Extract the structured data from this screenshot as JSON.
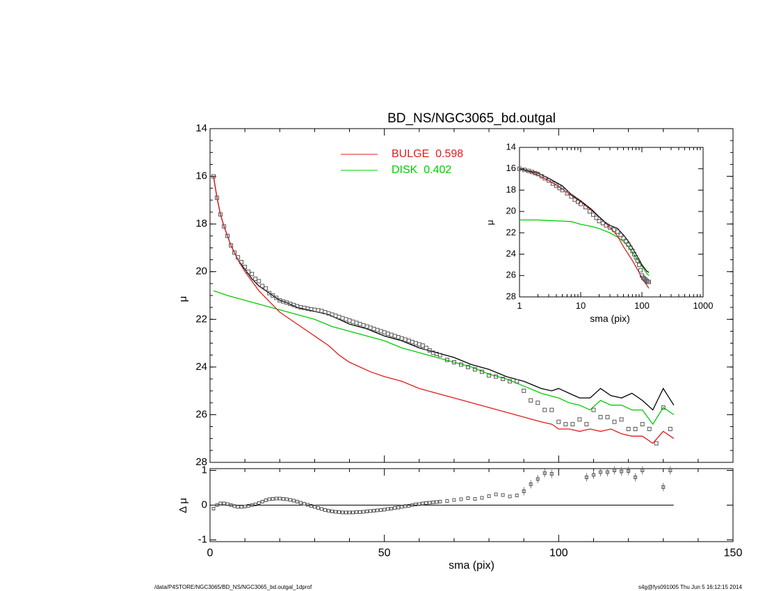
{
  "chart_data": [
    {
      "type": "scatter",
      "title": "BD_NS/NGC3065_bd.outgal",
      "xlabel": "",
      "ylabel": "μ",
      "xlim": [
        0,
        150
      ],
      "ylim": [
        28,
        14
      ],
      "y_inverted": true,
      "yticks": [
        "14",
        "16",
        "18",
        "20",
        "22",
        "24",
        "26",
        "28"
      ],
      "legend": {
        "placement": "top-center",
        "entries": [
          "BULGE  0.598",
          "DISK  0.402"
        ]
      },
      "series": [
        {
          "name": "BULGE",
          "color": "#e31a1c",
          "x": [
            1,
            2,
            3,
            4,
            5,
            6,
            8,
            10,
            12,
            14,
            16,
            18,
            20,
            22,
            25,
            28,
            31,
            34,
            37,
            40,
            43,
            46,
            50,
            55,
            60,
            65,
            70,
            75,
            80,
            85,
            90,
            95,
            98,
            100,
            103,
            106,
            109,
            112,
            115,
            118,
            121,
            124,
            127,
            130,
            133
          ],
          "y": [
            16.0,
            16.9,
            17.6,
            18.1,
            18.5,
            18.9,
            19.5,
            20.0,
            20.4,
            20.8,
            21.1,
            21.4,
            21.7,
            21.9,
            22.2,
            22.5,
            22.8,
            23.1,
            23.5,
            23.8,
            24.0,
            24.2,
            24.4,
            24.6,
            24.9,
            25.1,
            25.3,
            25.5,
            25.7,
            25.9,
            26.1,
            26.3,
            26.4,
            26.6,
            26.6,
            26.7,
            26.6,
            26.7,
            26.6,
            26.8,
            26.9,
            26.9,
            27.2,
            26.7,
            27.0
          ]
        },
        {
          "name": "DISK",
          "color": "#00cc00",
          "x": [
            1,
            5,
            10,
            15,
            20,
            25,
            30,
            35,
            40,
            45,
            50,
            55,
            60,
            65,
            70,
            75,
            80,
            85,
            90,
            95,
            100,
            103,
            106,
            109,
            112,
            115,
            118,
            121,
            124,
            127,
            130,
            133
          ],
          "y": [
            20.8,
            21.0,
            21.2,
            21.4,
            21.6,
            21.8,
            22.0,
            22.3,
            22.5,
            22.7,
            22.9,
            23.2,
            23.4,
            23.6,
            23.8,
            24.0,
            24.3,
            24.5,
            24.8,
            25.1,
            25.3,
            25.5,
            25.6,
            25.8,
            25.4,
            25.6,
            25.6,
            25.8,
            25.8,
            26.4,
            25.7,
            26.0
          ]
        },
        {
          "name": "",
          "color": "#000000",
          "x": [
            1,
            2,
            3,
            4,
            5,
            6,
            8,
            10,
            12,
            14,
            16,
            18,
            20,
            22,
            25,
            28,
            31,
            34,
            37,
            40,
            45,
            50,
            55,
            60,
            65,
            70,
            75,
            80,
            85,
            90,
            95,
            98,
            100,
            103,
            106,
            109,
            112,
            115,
            118,
            121,
            124,
            127,
            130,
            133
          ],
          "y": [
            16.0,
            16.9,
            17.6,
            18.1,
            18.5,
            18.9,
            19.5,
            19.9,
            20.3,
            20.6,
            20.8,
            21.0,
            21.2,
            21.3,
            21.5,
            21.6,
            21.7,
            21.8,
            22.0,
            22.2,
            22.4,
            22.7,
            22.9,
            23.2,
            23.4,
            23.6,
            23.9,
            24.1,
            24.4,
            24.6,
            24.9,
            25.0,
            24.9,
            25.1,
            25.3,
            25.3,
            24.9,
            25.2,
            25.3,
            25.1,
            25.4,
            25.8,
            24.9,
            25.6
          ]
        },
        {
          "name": "",
          "marker": "square",
          "color": "#555555",
          "x": [
            1,
            2,
            3,
            4,
            5,
            6,
            7,
            8,
            9,
            10,
            11,
            12,
            13,
            14,
            15,
            16,
            17,
            18,
            19,
            20,
            21,
            22,
            23,
            24,
            25,
            26,
            27,
            28,
            29,
            30,
            31,
            32,
            33,
            34,
            35,
            36,
            37,
            38,
            39,
            40,
            41,
            42,
            43,
            44,
            45,
            46,
            47,
            48,
            49,
            50,
            51,
            52,
            53,
            54,
            55,
            56,
            57,
            58,
            59,
            60,
            61,
            62,
            63,
            64,
            65,
            66,
            68,
            70,
            72,
            74,
            76,
            78,
            80,
            82,
            84,
            86,
            88,
            90,
            92,
            94,
            96,
            98,
            100,
            102,
            104,
            106,
            108,
            110,
            112,
            114,
            116,
            118,
            120,
            122,
            124,
            126,
            128,
            130,
            132
          ],
          "y": [
            16.0,
            16.9,
            17.6,
            18.1,
            18.5,
            18.9,
            19.2,
            19.4,
            19.6,
            19.8,
            20.0,
            20.1,
            20.3,
            20.4,
            20.6,
            20.7,
            20.9,
            21.0,
            21.1,
            21.2,
            21.25,
            21.3,
            21.35,
            21.4,
            21.45,
            21.5,
            21.52,
            21.55,
            21.58,
            21.6,
            21.62,
            21.65,
            21.7,
            21.75,
            21.8,
            21.85,
            21.9,
            21.95,
            22.0,
            22.05,
            22.1,
            22.15,
            22.2,
            22.25,
            22.3,
            22.35,
            22.4,
            22.45,
            22.5,
            22.55,
            22.6,
            22.65,
            22.7,
            22.75,
            22.8,
            22.85,
            22.9,
            22.95,
            23.0,
            23.05,
            23.1,
            23.2,
            23.3,
            23.4,
            23.45,
            23.5,
            23.7,
            23.8,
            23.9,
            24.0,
            24.1,
            24.2,
            24.35,
            24.4,
            24.5,
            24.6,
            24.6,
            25.0,
            25.4,
            25.5,
            25.8,
            25.8,
            26.3,
            26.4,
            26.4,
            26.2,
            26.4,
            25.8,
            26.1,
            26.1,
            26.3,
            26.2,
            26.6,
            26.6,
            26.4,
            26.6,
            27.2,
            25.7,
            26.6
          ]
        }
      ]
    },
    {
      "type": "scatter",
      "xlabel": "",
      "ylabel": "μ",
      "x_scale": "log",
      "xlim": [
        1,
        1000
      ],
      "ylim": [
        28,
        14
      ],
      "y_inverted": true,
      "xticks": [
        "1",
        "10",
        "100",
        "1000"
      ],
      "yticks": [
        "14",
        "16",
        "18",
        "20",
        "22",
        "24",
        "26",
        "28"
      ],
      "series": [
        {
          "name": "BULGE",
          "color": "#e31a1c",
          "x": [
            1,
            1.5,
            2,
            3,
            5,
            7,
            10,
            15,
            20,
            30,
            40,
            50,
            60,
            70,
            80,
            90,
            100,
            110,
            120,
            130
          ],
          "y": [
            16.0,
            16.3,
            16.6,
            17.1,
            17.9,
            18.5,
            19.1,
            19.9,
            20.5,
            21.5,
            22.3,
            23.3,
            24.0,
            24.6,
            25.2,
            25.7,
            26.3,
            26.6,
            26.9,
            27.2
          ]
        },
        {
          "name": "DISK",
          "color": "#00cc00",
          "x": [
            1,
            2,
            3,
            5,
            7,
            10,
            15,
            20,
            30,
            40,
            50,
            60,
            70,
            80,
            90,
            100,
            110,
            120,
            130
          ],
          "y": [
            20.8,
            20.8,
            20.85,
            20.9,
            20.95,
            21.2,
            21.4,
            21.6,
            22.0,
            22.4,
            22.8,
            23.3,
            23.8,
            24.3,
            24.7,
            25.1,
            25.5,
            25.8,
            26.0
          ]
        },
        {
          "name": "",
          "color": "#000000",
          "x": [
            1,
            2,
            3,
            5,
            7,
            10,
            15,
            20,
            25,
            30,
            40,
            50,
            60,
            70,
            80,
            90,
            100,
            110,
            120,
            130
          ],
          "y": [
            16.0,
            16.4,
            16.9,
            17.6,
            18.4,
            19.0,
            19.8,
            20.5,
            21.0,
            21.3,
            21.6,
            22.2,
            22.8,
            23.4,
            24.0,
            24.5,
            25.0,
            25.3,
            25.6,
            25.7
          ]
        },
        {
          "name": "",
          "marker": "square",
          "color": "#555555",
          "x": [
            1,
            1.2,
            1.4,
            1.6,
            1.8,
            2,
            2.3,
            2.6,
            3,
            3.5,
            4,
            4.5,
            5,
            6,
            7,
            8,
            9,
            10,
            12,
            14,
            16,
            18,
            20,
            23,
            26,
            30,
            35,
            40,
            45,
            50,
            55,
            60,
            65,
            70,
            75,
            80,
            85,
            90,
            95,
            100,
            105,
            110,
            115,
            120,
            125,
            130
          ],
          "y": [
            16.0,
            16.1,
            16.2,
            16.3,
            16.4,
            16.5,
            16.7,
            16.9,
            17.1,
            17.4,
            17.6,
            17.8,
            18.0,
            18.3,
            18.6,
            18.9,
            19.1,
            19.3,
            19.6,
            20.0,
            20.3,
            20.6,
            20.9,
            21.1,
            21.3,
            21.5,
            21.7,
            21.9,
            22.2,
            22.5,
            22.8,
            23.1,
            23.4,
            23.7,
            24.0,
            24.3,
            24.6,
            25.0,
            25.5,
            26.0,
            26.2,
            26.3,
            26.4,
            26.5,
            26.6,
            26.6
          ]
        }
      ]
    },
    {
      "type": "scatter",
      "xlabel": "sma (pix)",
      "ylabel": "Δ μ",
      "xlim": [
        0,
        150
      ],
      "ylim": [
        -1,
        1
      ],
      "xticks": [
        "0",
        "50",
        "100",
        "150"
      ],
      "yticks": [
        "1",
        "0",
        "-1"
      ],
      "reference_line": 0,
      "series": [
        {
          "name": "",
          "marker": "square",
          "color": "#555555",
          "x": [
            1,
            2,
            3,
            4,
            5,
            6,
            7,
            8,
            9,
            10,
            11,
            12,
            13,
            14,
            15,
            16,
            17,
            18,
            19,
            20,
            21,
            22,
            23,
            24,
            25,
            26,
            27,
            28,
            29,
            30,
            31,
            32,
            33,
            34,
            35,
            36,
            37,
            38,
            39,
            40,
            41,
            42,
            43,
            44,
            45,
            46,
            47,
            48,
            49,
            50,
            51,
            52,
            53,
            54,
            55,
            56,
            57,
            58,
            59,
            60,
            61,
            62,
            63,
            64,
            65,
            66,
            68,
            70,
            72,
            74,
            76,
            78,
            80,
            82,
            84,
            86,
            88,
            90,
            92,
            94,
            96,
            98,
            108,
            110,
            112,
            114,
            116,
            118,
            120,
            122,
            124,
            130,
            132
          ],
          "y": [
            -0.1,
            0.0,
            0.05,
            0.05,
            0.03,
            0.0,
            -0.03,
            -0.05,
            -0.05,
            -0.04,
            -0.02,
            0.0,
            0.02,
            0.06,
            0.1,
            0.14,
            0.17,
            0.18,
            0.19,
            0.19,
            0.18,
            0.17,
            0.15,
            0.13,
            0.1,
            0.07,
            0.04,
            0.01,
            -0.02,
            -0.05,
            -0.08,
            -0.11,
            -0.14,
            -0.16,
            -0.18,
            -0.19,
            -0.2,
            -0.21,
            -0.21,
            -0.21,
            -0.21,
            -0.2,
            -0.2,
            -0.19,
            -0.18,
            -0.17,
            -0.16,
            -0.15,
            -0.14,
            -0.13,
            -0.11,
            -0.1,
            -0.08,
            -0.07,
            -0.05,
            -0.03,
            -0.02,
            0.0,
            0.02,
            0.03,
            0.05,
            0.06,
            0.07,
            0.08,
            0.09,
            0.1,
            0.12,
            0.15,
            0.17,
            0.2,
            0.18,
            0.21,
            0.26,
            0.31,
            0.29,
            0.25,
            0.28,
            0.4,
            0.6,
            0.75,
            0.92,
            0.9,
            0.8,
            0.87,
            0.95,
            0.95,
            1.0,
            0.97,
            0.98,
            0.8,
            1.0,
            0.52,
            1.0
          ]
        }
      ]
    }
  ],
  "footer": {
    "left": "/data/P4STORE/NGC3065/BD_NS/NGC3065_bd.outgal_1dprof",
    "right": "s4g@fys091005  Thu Jun  5 16:12:15 2014"
  }
}
